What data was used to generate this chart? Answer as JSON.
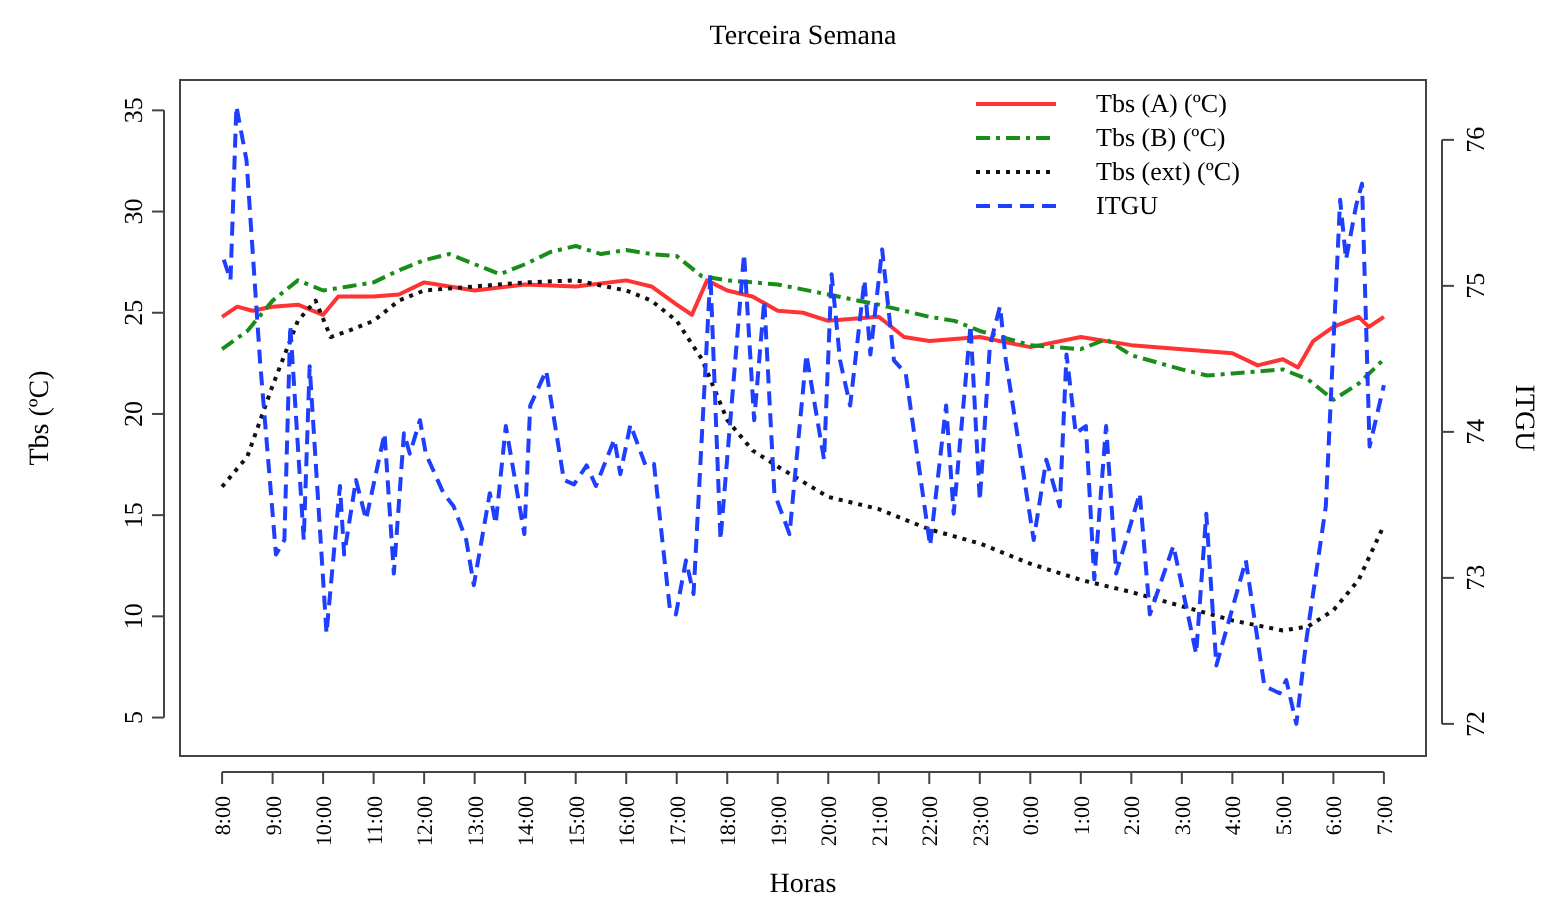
{
  "chart_data": {
    "type": "line",
    "title": "Terceira Semana",
    "xlabel": "Horas",
    "ylabel": "Tbs (ºC)",
    "y2label": "ITGU",
    "xlim": [
      "2000-01-01T07:10",
      "2000-01-02T07:50"
    ],
    "xticks": [
      {
        "value": "2000-01-01T08:00",
        "label": "8:00"
      },
      {
        "value": "2000-01-01T09:00",
        "label": "9:00"
      },
      {
        "value": "2000-01-01T10:00",
        "label": "10:00"
      },
      {
        "value": "2000-01-01T11:00",
        "label": "11:00"
      },
      {
        "value": "2000-01-01T12:00",
        "label": "12:00"
      },
      {
        "value": "2000-01-01T13:00",
        "label": "13:00"
      },
      {
        "value": "2000-01-01T14:00",
        "label": "14:00"
      },
      {
        "value": "2000-01-01T15:00",
        "label": "15:00"
      },
      {
        "value": "2000-01-01T16:00",
        "label": "16:00"
      },
      {
        "value": "2000-01-01T17:00",
        "label": "17:00"
      },
      {
        "value": "2000-01-01T18:00",
        "label": "18:00"
      },
      {
        "value": "2000-01-01T19:00",
        "label": "19:00"
      },
      {
        "value": "2000-01-01T20:00",
        "label": "20:00"
      },
      {
        "value": "2000-01-01T21:00",
        "label": "21:00"
      },
      {
        "value": "2000-01-01T22:00",
        "label": "22:00"
      },
      {
        "value": "2000-01-01T23:00",
        "label": "23:00"
      },
      {
        "value": "2000-01-02T00:00",
        "label": "0:00"
      },
      {
        "value": "2000-01-02T01:00",
        "label": "1:00"
      },
      {
        "value": "2000-01-02T02:00",
        "label": "2:00"
      },
      {
        "value": "2000-01-02T03:00",
        "label": "3:00"
      },
      {
        "value": "2000-01-02T04:00",
        "label": "4:00"
      },
      {
        "value": "2000-01-02T05:00",
        "label": "5:00"
      },
      {
        "value": "2000-01-02T06:00",
        "label": "6:00"
      },
      {
        "value": "2000-01-02T07:00",
        "label": "7:00"
      }
    ],
    "ylim": [
      3.1,
      36.5
    ],
    "yticks": [
      5,
      10,
      15,
      20,
      25,
      30,
      35
    ],
    "y2lim": [
      71.78,
      76.41
    ],
    "y2ticks": [
      72,
      73,
      74,
      75,
      76
    ],
    "grid": false,
    "legend": "top right",
    "marker": "none",
    "series": [
      {
        "name": "Tbs (A) (ºC)",
        "color": "#ff3333",
        "line_style": "solid",
        "x": [
          "2000-01-01T08:00",
          "2000-01-01T08:18",
          "2000-01-01T08:36",
          "2000-01-01T09:00",
          "2000-01-01T09:30",
          "2000-01-01T10:00",
          "2000-01-01T10:18",
          "2000-01-01T11:00",
          "2000-01-01T11:30",
          "2000-01-01T12:00",
          "2000-01-01T12:30",
          "2000-01-01T13:00",
          "2000-01-01T14:00",
          "2000-01-01T15:00",
          "2000-01-01T16:00",
          "2000-01-01T16:30",
          "2000-01-01T17:00",
          "2000-01-01T17:18",
          "2000-01-01T17:36",
          "2000-01-01T18:00",
          "2000-01-01T18:30",
          "2000-01-01T19:00",
          "2000-01-01T19:30",
          "2000-01-01T20:00",
          "2000-01-01T21:00",
          "2000-01-01T21:30",
          "2000-01-01T22:00",
          "2000-01-01T23:00",
          "2000-01-02T00:00",
          "2000-01-02T01:00",
          "2000-01-02T02:00",
          "2000-01-02T03:00",
          "2000-01-02T04:00",
          "2000-01-02T04:30",
          "2000-01-02T05:00",
          "2000-01-02T05:18",
          "2000-01-02T05:36",
          "2000-01-02T06:00",
          "2000-01-02T06:30",
          "2000-01-02T06:42",
          "2000-01-02T07:00"
        ],
        "values": [
          24.8,
          25.3,
          25.1,
          25.3,
          25.4,
          24.9,
          25.8,
          25.8,
          25.9,
          26.5,
          26.3,
          26.1,
          26.4,
          26.3,
          26.6,
          26.3,
          25.4,
          24.9,
          26.6,
          26.1,
          25.8,
          25.1,
          25,
          24.6,
          24.8,
          23.8,
          23.6,
          23.8,
          23.3,
          23.8,
          23.4,
          23.2,
          23,
          22.4,
          22.7,
          22.3,
          23.6,
          24.3,
          24.8,
          24.3,
          24.8
        ]
      },
      {
        "name": "Tbs (B) (ºC)",
        "color": "#1a8c1a",
        "line_style": "dashdot",
        "x": [
          "2000-01-01T08:00",
          "2000-01-01T08:30",
          "2000-01-01T09:00",
          "2000-01-01T09:30",
          "2000-01-01T10:00",
          "2000-01-01T10:30",
          "2000-01-01T11:00",
          "2000-01-01T11:30",
          "2000-01-01T12:00",
          "2000-01-01T12:30",
          "2000-01-01T13:00",
          "2000-01-01T13:30",
          "2000-01-01T14:00",
          "2000-01-01T14:30",
          "2000-01-01T15:00",
          "2000-01-01T15:30",
          "2000-01-01T16:00",
          "2000-01-01T16:30",
          "2000-01-01T17:00",
          "2000-01-01T17:30",
          "2000-01-01T18:00",
          "2000-01-01T19:00",
          "2000-01-01T20:00",
          "2000-01-01T21:00",
          "2000-01-01T22:00",
          "2000-01-01T22:30",
          "2000-01-01T23:00",
          "2000-01-02T00:00",
          "2000-01-02T01:00",
          "2000-01-02T01:30",
          "2000-01-02T02:00",
          "2000-01-02T03:00",
          "2000-01-02T03:30",
          "2000-01-02T04:00",
          "2000-01-02T05:00",
          "2000-01-02T05:30",
          "2000-01-02T06:00",
          "2000-01-02T06:30",
          "2000-01-02T07:00"
        ],
        "values": [
          23.2,
          24.1,
          25.6,
          26.6,
          26.1,
          26.3,
          26.5,
          27.1,
          27.6,
          27.9,
          27.4,
          26.9,
          27.4,
          28,
          28.3,
          27.9,
          28.1,
          27.9,
          27.8,
          26.8,
          26.6,
          26.4,
          25.9,
          25.4,
          24.8,
          24.6,
          24.1,
          23.4,
          23.2,
          23.7,
          22.9,
          22.2,
          21.9,
          22,
          22.2,
          21.7,
          20.7,
          21.5,
          22.7
        ]
      },
      {
        "name": "Tbs (ext) (ºC)",
        "color": "#111111",
        "line_style": "dotted",
        "x": [
          "2000-01-01T08:00",
          "2000-01-01T08:30",
          "2000-01-01T09:00",
          "2000-01-01T09:30",
          "2000-01-01T09:51",
          "2000-01-01T10:09",
          "2000-01-01T10:30",
          "2000-01-01T11:00",
          "2000-01-01T11:30",
          "2000-01-01T12:00",
          "2000-01-01T13:00",
          "2000-01-01T14:00",
          "2000-01-01T15:00",
          "2000-01-01T16:00",
          "2000-01-01T16:30",
          "2000-01-01T17:00",
          "2000-01-01T17:30",
          "2000-01-01T18:00",
          "2000-01-01T18:30",
          "2000-01-01T19:00",
          "2000-01-01T20:00",
          "2000-01-01T21:00",
          "2000-01-01T22:00",
          "2000-01-01T23:00",
          "2000-01-02T00:00",
          "2000-01-02T01:00",
          "2000-01-02T02:00",
          "2000-01-02T03:00",
          "2000-01-02T04:00",
          "2000-01-02T05:00",
          "2000-01-02T05:30",
          "2000-01-02T06:00",
          "2000-01-02T06:30",
          "2000-01-02T07:00"
        ],
        "values": [
          16.4,
          17.9,
          21.4,
          24.6,
          25.6,
          23.8,
          24.1,
          24.6,
          25.6,
          26.1,
          26.3,
          26.5,
          26.6,
          26.1,
          25.6,
          24.6,
          22.7,
          19.7,
          18.2,
          17.4,
          15.9,
          15.3,
          14.3,
          13.6,
          12.6,
          11.8,
          11.2,
          10.5,
          9.8,
          9.3,
          9.5,
          10.3,
          11.8,
          14.5
        ]
      },
      {
        "name": "ITGU",
        "color": "#1f3fff",
        "line_style": "dashed",
        "axis": "y2",
        "x": [
          "2000-01-01T08:02",
          "2000-01-01T08:10",
          "2000-01-01T08:17",
          "2000-01-01T08:29",
          "2000-01-01T08:45",
          "2000-01-01T09:04",
          "2000-01-01T09:14",
          "2000-01-01T09:21",
          "2000-01-01T09:37",
          "2000-01-01T09:44",
          "2000-01-01T10:04",
          "2000-01-01T10:20",
          "2000-01-01T10:25",
          "2000-01-01T10:39",
          "2000-01-01T10:51",
          "2000-01-01T11:13",
          "2000-01-01T11:24",
          "2000-01-01T11:36",
          "2000-01-01T11:43",
          "2000-01-01T11:55",
          "2000-01-01T12:02",
          "2000-01-01T12:23",
          "2000-01-01T12:35",
          "2000-01-01T12:50",
          "2000-01-01T12:59",
          "2000-01-01T13:18",
          "2000-01-01T13:25",
          "2000-01-01T13:37",
          "2000-01-01T13:59",
          "2000-01-01T14:06",
          "2000-01-01T14:25",
          "2000-01-01T14:46",
          "2000-01-01T14:58",
          "2000-01-01T15:13",
          "2000-01-01T15:24",
          "2000-01-01T15:46",
          "2000-01-01T15:53",
          "2000-01-01T16:05",
          "2000-01-01T16:23",
          "2000-01-01T16:33",
          "2000-01-01T16:52",
          "2000-01-01T16:59",
          "2000-01-01T17:11",
          "2000-01-01T17:20",
          "2000-01-01T17:40",
          "2000-01-01T17:52",
          "2000-01-01T18:20",
          "2000-01-01T18:32",
          "2000-01-01T18:44",
          "2000-01-01T18:56",
          "2000-01-01T19:14",
          "2000-01-01T19:34",
          "2000-01-01T19:55",
          "2000-01-01T20:04",
          "2000-01-01T20:14",
          "2000-01-01T20:26",
          "2000-01-01T20:43",
          "2000-01-01T20:50",
          "2000-01-01T21:04",
          "2000-01-01T21:18",
          "2000-01-01T21:32",
          "2000-01-01T22:01",
          "2000-01-01T22:20",
          "2000-01-01T22:29",
          "2000-01-01T22:49",
          "2000-01-01T23:00",
          "2000-01-01T23:12",
          "2000-01-01T23:24",
          "2000-01-01T23:31",
          "2000-01-02T00:04",
          "2000-01-02T00:19",
          "2000-01-02T00:35",
          "2000-01-02T00:43",
          "2000-01-02T00:54",
          "2000-01-02T01:06",
          "2000-01-02T01:16",
          "2000-01-02T01:30",
          "2000-01-02T01:42",
          "2000-01-02T02:10",
          "2000-01-02T02:22",
          "2000-01-02T02:50",
          "2000-01-02T03:17",
          "2000-01-02T03:29",
          "2000-01-02T03:41",
          "2000-01-02T04:16",
          "2000-01-02T04:38",
          "2000-01-02T04:56",
          "2000-01-02T05:04",
          "2000-01-02T05:16",
          "2000-01-02T05:28",
          "2000-01-02T05:51",
          "2000-01-02T06:08",
          "2000-01-02T06:15",
          "2000-01-02T06:27",
          "2000-01-02T06:34",
          "2000-01-02T06:43",
          "2000-01-02T07:00"
        ],
        "values": [
          75.18,
          75.04,
          76.23,
          75.86,
          74.49,
          73.16,
          73.26,
          74.73,
          73.26,
          74.45,
          72.62,
          73.63,
          73.16,
          73.67,
          73.4,
          73.99,
          73.03,
          73.99,
          73.85,
          74.08,
          73.85,
          73.58,
          73.49,
          73.26,
          72.95,
          73.58,
          73.37,
          74.04,
          73.3,
          74.18,
          74.42,
          73.67,
          73.64,
          73.77,
          73.63,
          73.95,
          73.71,
          74.05,
          73.77,
          73.78,
          72.78,
          72.75,
          73.12,
          72.89,
          75.08,
          73.26,
          75.22,
          74.08,
          74.9,
          73.58,
          73.3,
          74.53,
          73.81,
          75.08,
          74.49,
          74.18,
          75.04,
          74.53,
          75.25,
          74.49,
          74.4,
          73.22,
          74.18,
          73.44,
          74.73,
          73.53,
          74.59,
          74.86,
          74.49,
          73.26,
          73.81,
          73.49,
          74.53,
          73.99,
          74.04,
          72.99,
          74.04,
          73.03,
          73.58,
          72.75,
          73.22,
          72.48,
          73.44,
          72.4,
          73.12,
          72.26,
          72.21,
          72.3,
          72,
          72.58,
          73.49,
          75.59,
          75.18,
          75.55,
          75.7,
          73.9,
          74.32
        ]
      }
    ]
  }
}
